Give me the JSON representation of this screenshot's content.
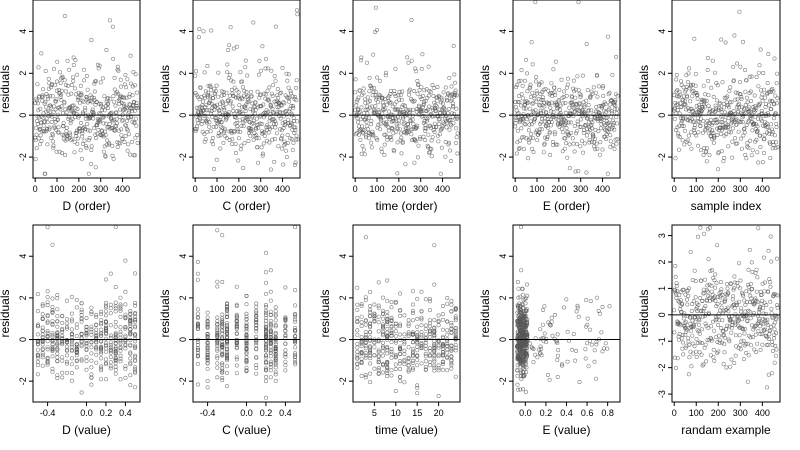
{
  "figure": {
    "background": "#ffffff",
    "point_color": "#555555",
    "line_color": "#000000"
  },
  "chart_data": [
    {
      "type": "scatter",
      "panel": "D (order)",
      "xlabel": "D (order)",
      "ylabel": "residuals",
      "xlim": [
        -10,
        480
      ],
      "ylim": [
        -3,
        5.5
      ],
      "xticks": [
        0,
        100,
        200,
        300,
        400
      ],
      "xtick_labels": [
        "0",
        "100",
        "200",
        "300",
        "400"
      ],
      "yticks": [
        -2,
        0,
        2,
        4
      ],
      "ytick_labels": [
        "-2",
        "0",
        "2",
        "4"
      ],
      "reference_line": 0,
      "n_points": 470,
      "seed": 11,
      "x_mode": "index"
    },
    {
      "type": "scatter",
      "panel": "C (order)",
      "xlabel": "C (order)",
      "ylabel": "residuals",
      "xlim": [
        -10,
        480
      ],
      "ylim": [
        -3,
        5.5
      ],
      "xticks": [
        0,
        100,
        200,
        300,
        400
      ],
      "xtick_labels": [
        "0",
        "100",
        "200",
        "300",
        "400"
      ],
      "yticks": [
        -2,
        0,
        2,
        4
      ],
      "ytick_labels": [
        "-2",
        "0",
        "2",
        "4"
      ],
      "reference_line": 0,
      "n_points": 470,
      "seed": 23,
      "x_mode": "index"
    },
    {
      "type": "scatter",
      "panel": "time (order)",
      "xlabel": "time (order)",
      "ylabel": "residuals",
      "xlim": [
        -10,
        480
      ],
      "ylim": [
        -3,
        5.5
      ],
      "xticks": [
        0,
        100,
        200,
        300,
        400
      ],
      "xtick_labels": [
        "0",
        "100",
        "200",
        "300",
        "400"
      ],
      "yticks": [
        -2,
        0,
        2,
        4
      ],
      "ytick_labels": [
        "-2",
        "0",
        "2",
        "4"
      ],
      "reference_line": 0,
      "n_points": 470,
      "seed": 37,
      "x_mode": "index"
    },
    {
      "type": "scatter",
      "panel": "E (order)",
      "xlabel": "E (order)",
      "ylabel": "residuals",
      "xlim": [
        -10,
        480
      ],
      "ylim": [
        -3,
        5.5
      ],
      "xticks": [
        0,
        100,
        200,
        300,
        400
      ],
      "xtick_labels": [
        "0",
        "100",
        "200",
        "300",
        "400"
      ],
      "yticks": [
        -2,
        0,
        2,
        4
      ],
      "ytick_labels": [
        "-2",
        "0",
        "2",
        "4"
      ],
      "reference_line": 0,
      "n_points": 470,
      "seed": 41,
      "x_mode": "index"
    },
    {
      "type": "scatter",
      "panel": "sample index",
      "xlabel": "sample index",
      "ylabel": "residuals",
      "xlim": [
        -10,
        480
      ],
      "ylim": [
        -3,
        5.5
      ],
      "xticks": [
        0,
        100,
        200,
        300,
        400
      ],
      "xtick_labels": [
        "0",
        "100",
        "200",
        "300",
        "400"
      ],
      "yticks": [
        -2,
        0,
        2,
        4
      ],
      "ytick_labels": [
        "-2",
        "0",
        "2",
        "4"
      ],
      "reference_line": 0,
      "n_points": 470,
      "seed": 53,
      "x_mode": "index"
    },
    {
      "type": "scatter",
      "panel": "D (value)",
      "xlabel": "D (value)",
      "ylabel": "residuals",
      "xlim": [
        -0.55,
        0.55
      ],
      "ylim": [
        -3,
        5.5
      ],
      "xticks": [
        -0.4,
        0,
        0.2,
        0.4
      ],
      "xtick_labels": [
        "-0.4",
        "0.0",
        "0.2",
        "0.4"
      ],
      "yticks": [
        -2,
        0,
        2,
        4
      ],
      "ytick_labels": [
        "-2",
        "0",
        "2",
        "4"
      ],
      "reference_line": 0,
      "n_points": 470,
      "seed": 61,
      "x_mode": "discrete",
      "x_levels": [
        -0.5,
        -0.45,
        -0.4,
        -0.35,
        -0.3,
        -0.25,
        -0.2,
        -0.15,
        -0.1,
        -0.05,
        0,
        0.05,
        0.1,
        0.15,
        0.2,
        0.25,
        0.3,
        0.35,
        0.4,
        0.45,
        0.5
      ]
    },
    {
      "type": "scatter",
      "panel": "C (value)",
      "xlabel": "C (value)",
      "ylabel": "residuals",
      "xlim": [
        -0.55,
        0.55
      ],
      "ylim": [
        -3,
        5.5
      ],
      "xticks": [
        -0.4,
        0,
        0.2,
        0.4
      ],
      "xtick_labels": [
        "-0.4",
        "0.0",
        "0.2",
        "0.4"
      ],
      "yticks": [
        -2,
        0,
        2,
        4
      ],
      "ytick_labels": [
        "-2",
        "0",
        "2",
        "4"
      ],
      "reference_line": 0,
      "n_points": 470,
      "seed": 71,
      "x_mode": "discrete",
      "x_levels": [
        -0.5,
        -0.4,
        -0.3,
        -0.25,
        -0.2,
        -0.1,
        0,
        0.1,
        0.2,
        0.25,
        0.3,
        0.4,
        0.5
      ]
    },
    {
      "type": "scatter",
      "panel": "time (value)",
      "xlabel": "time (value)",
      "ylabel": "residuals",
      "xlim": [
        0,
        25
      ],
      "ylim": [
        -3,
        5.5
      ],
      "xticks": [
        5,
        10,
        15,
        20
      ],
      "xtick_labels": [
        "5",
        "10",
        "15",
        "20"
      ],
      "yticks": [
        -2,
        0,
        2,
        4
      ],
      "ytick_labels": [
        "-2",
        "0",
        "2",
        "4"
      ],
      "reference_line": 0,
      "n_points": 470,
      "seed": 83,
      "x_mode": "discrete",
      "x_levels": [
        1,
        2,
        3,
        4,
        5,
        6,
        7,
        8,
        9,
        10,
        11,
        12,
        13,
        14,
        15,
        16,
        17,
        18,
        19,
        20,
        21,
        22,
        23,
        24
      ]
    },
    {
      "type": "scatter",
      "panel": "E (value)",
      "xlabel": "E (value)",
      "ylabel": "residuals",
      "xlim": [
        -0.12,
        0.92
      ],
      "ylim": [
        -3,
        5.5
      ],
      "xticks": [
        0,
        0.2,
        0.4,
        0.6,
        0.8
      ],
      "xtick_labels": [
        "0.0",
        "0.2",
        "0.4",
        "0.6",
        "0.8"
      ],
      "yticks": [
        -2,
        0,
        2,
        4
      ],
      "ytick_labels": [
        "-2",
        "0",
        "2",
        "4"
      ],
      "reference_line": 0,
      "n_points": 470,
      "seed": 97,
      "x_mode": "skewed"
    },
    {
      "type": "scatter",
      "panel": "randam example",
      "xlabel": "randam example",
      "ylabel": "residuals",
      "xlim": [
        -10,
        480
      ],
      "ylim": [
        -3.3,
        3.4
      ],
      "xticks": [
        0,
        100,
        200,
        300,
        400
      ],
      "xtick_labels": [
        "0",
        "100",
        "200",
        "300",
        "400"
      ],
      "yticks": [
        -3,
        -2,
        -1,
        0,
        1,
        2,
        3
      ],
      "ytick_labels": [
        "-3",
        "-2",
        "-1",
        "0",
        "1",
        "2",
        "3"
      ],
      "reference_line": 0,
      "n_points": 470,
      "seed": 101,
      "x_mode": "index"
    }
  ]
}
